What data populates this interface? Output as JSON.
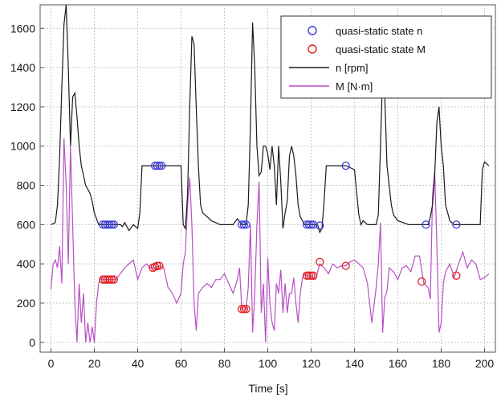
{
  "chart_data": {
    "type": "line",
    "title": "",
    "xlabel": "Time [s]",
    "ylabel": "",
    "xlim": [
      -5,
      205
    ],
    "ylim": [
      -50,
      1720
    ],
    "grid": true,
    "legend_position": "top-right",
    "x_ticks": [
      "0",
      "20",
      "40",
      "60",
      "80",
      "100",
      "120",
      "140",
      "160",
      "180",
      "200"
    ],
    "x_tick_values": [
      0,
      20,
      40,
      60,
      80,
      100,
      120,
      140,
      160,
      180,
      200
    ],
    "y_ticks": [
      "0",
      "200",
      "400",
      "600",
      "800",
      "1000",
      "1200",
      "1400",
      "1600"
    ],
    "y_tick_values": [
      0,
      200,
      400,
      600,
      800,
      1000,
      1200,
      1400,
      1600
    ],
    "series": [
      {
        "name": "quasi-static state n",
        "kind": "scatter",
        "color": "#3b3bd6",
        "marker": "circle",
        "x": [
          24,
          25,
          26,
          27,
          28,
          29,
          48,
          49,
          50,
          51,
          88,
          89,
          90,
          118,
          119,
          120,
          121,
          124,
          136,
          173,
          187
        ],
        "y": [
          600,
          600,
          600,
          600,
          600,
          600,
          900,
          900,
          900,
          900,
          600,
          600,
          600,
          600,
          600,
          600,
          600,
          595,
          900,
          600,
          600
        ]
      },
      {
        "name": "quasi-static state M",
        "kind": "scatter",
        "color": "#e02020",
        "marker": "circle",
        "x": [
          24,
          25,
          26,
          27,
          28,
          29,
          47,
          48,
          49,
          50,
          88,
          89,
          90,
          118,
          119,
          120,
          121,
          124,
          136,
          171,
          187
        ],
        "y": [
          320,
          320,
          320,
          320,
          320,
          320,
          380,
          385,
          390,
          390,
          170,
          170,
          170,
          340,
          340,
          340,
          340,
          410,
          390,
          310,
          340
        ]
      },
      {
        "name": "n [rpm]",
        "kind": "line",
        "color": "#1a1a1a",
        "x": [
          0,
          2,
          3,
          4,
          5,
          6,
          7,
          8,
          9,
          10,
          11,
          12,
          13,
          14,
          15,
          16,
          17,
          18,
          19,
          20,
          22,
          24,
          30,
          32,
          33,
          34,
          36,
          38,
          40,
          41,
          42,
          48,
          55,
          60,
          61,
          62,
          63,
          64,
          65,
          66,
          67,
          68,
          69,
          70,
          72,
          74,
          76,
          78,
          80,
          84,
          86,
          88,
          90,
          91,
          92,
          93,
          94,
          95,
          96,
          97,
          98,
          99,
          100,
          101,
          102,
          103,
          104,
          105,
          106,
          107,
          108,
          109,
          110,
          111,
          112,
          113,
          114,
          115,
          116,
          117,
          118,
          120,
          123,
          124,
          125,
          126,
          127,
          128,
          134,
          136,
          140,
          142,
          143,
          144,
          146,
          148,
          150,
          151,
          152,
          153,
          154,
          155,
          156,
          157,
          158,
          160,
          165,
          170,
          174,
          175,
          176,
          177,
          178,
          179,
          180,
          181,
          182,
          184,
          186,
          190,
          194,
          198,
          199,
          200,
          202
        ],
        "y": [
          600,
          610,
          700,
          950,
          1300,
          1620,
          1720,
          1400,
          1000,
          1250,
          1270,
          1150,
          1000,
          900,
          850,
          800,
          780,
          760,
          720,
          660,
          600,
          600,
          600,
          600,
          590,
          610,
          570,
          600,
          580,
          660,
          900,
          900,
          900,
          900,
          600,
          580,
          750,
          1200,
          1560,
          1520,
          1200,
          900,
          700,
          660,
          640,
          620,
          610,
          600,
          600,
          600,
          630,
          600,
          600,
          700,
          1100,
          1630,
          1400,
          1000,
          850,
          870,
          1000,
          1000,
          960,
          880,
          1000,
          900,
          700,
          1000,
          820,
          580,
          660,
          720,
          950,
          1000,
          950,
          850,
          700,
          640,
          620,
          600,
          600,
          600,
          600,
          560,
          580,
          720,
          900,
          900,
          900,
          900,
          880,
          650,
          600,
          620,
          600,
          600,
          600,
          650,
          1000,
          1370,
          1250,
          900,
          800,
          700,
          650,
          620,
          600,
          600,
          600,
          640,
          700,
          850,
          1120,
          1200,
          1000,
          900,
          700,
          620,
          600,
          600,
          600,
          600,
          880,
          920,
          900
        ]
      },
      {
        "name": "M [N·m]",
        "kind": "line",
        "color": "#b84fc4",
        "x": [
          0,
          1,
          2,
          3,
          4,
          5,
          6,
          7,
          8,
          9,
          10,
          11,
          12,
          13,
          14,
          15,
          16,
          17,
          18,
          19,
          20,
          21,
          22,
          23,
          24,
          30,
          32,
          34,
          36,
          38,
          40,
          42,
          44,
          46,
          48,
          50,
          52,
          54,
          56,
          58,
          60,
          61,
          62,
          63,
          64,
          65,
          66,
          67,
          68,
          70,
          72,
          74,
          76,
          78,
          80,
          82,
          84,
          86,
          87,
          88,
          90,
          91,
          92,
          93,
          94,
          95,
          96,
          97,
          98,
          99,
          100,
          101,
          102,
          103,
          104,
          105,
          106,
          107,
          108,
          109,
          110,
          111,
          112,
          113,
          114,
          115,
          116,
          117,
          118,
          120,
          122,
          124,
          126,
          128,
          130,
          132,
          134,
          136,
          138,
          140,
          142,
          144,
          146,
          148,
          150,
          151,
          152,
          153,
          154,
          155,
          156,
          158,
          160,
          162,
          164,
          166,
          168,
          170,
          172,
          174,
          175,
          176,
          177,
          178,
          179,
          180,
          181,
          182,
          184,
          186,
          188,
          190,
          192,
          194,
          196,
          198,
          200,
          202
        ],
        "y": [
          270,
          400,
          420,
          380,
          490,
          300,
          1040,
          800,
          400,
          1000,
          600,
          200,
          0,
          300,
          100,
          250,
          0,
          100,
          0,
          80,
          0,
          200,
          300,
          330,
          320,
          320,
          350,
          380,
          400,
          420,
          320,
          380,
          400,
          380,
          380,
          390,
          380,
          280,
          250,
          200,
          250,
          400,
          460,
          700,
          840,
          600,
          200,
          60,
          250,
          280,
          300,
          280,
          320,
          320,
          350,
          300,
          250,
          320,
          380,
          170,
          170,
          280,
          600,
          50,
          250,
          600,
          820,
          150,
          300,
          0,
          430,
          200,
          100,
          60,
          300,
          250,
          370,
          150,
          300,
          150,
          250,
          250,
          330,
          200,
          100,
          250,
          330,
          350,
          340,
          340,
          320,
          400,
          380,
          350,
          400,
          380,
          390,
          390,
          410,
          420,
          400,
          380,
          300,
          100,
          280,
          400,
          610,
          50,
          230,
          260,
          380,
          360,
          320,
          380,
          390,
          360,
          440,
          440,
          300,
          280,
          220,
          750,
          870,
          500,
          50,
          100,
          300,
          360,
          400,
          330,
          400,
          460,
          380,
          420,
          400,
          320,
          330,
          350
        ]
      }
    ],
    "legend": [
      {
        "label": "quasi-static state n",
        "type": "marker",
        "color": "#3b3bd6"
      },
      {
        "label": "quasi-static state M",
        "type": "marker",
        "color": "#e02020"
      },
      {
        "label": "n [rpm]",
        "type": "line",
        "color": "#1a1a1a"
      },
      {
        "label": "M [N·m]",
        "type": "line",
        "color": "#b84fc4"
      }
    ]
  }
}
